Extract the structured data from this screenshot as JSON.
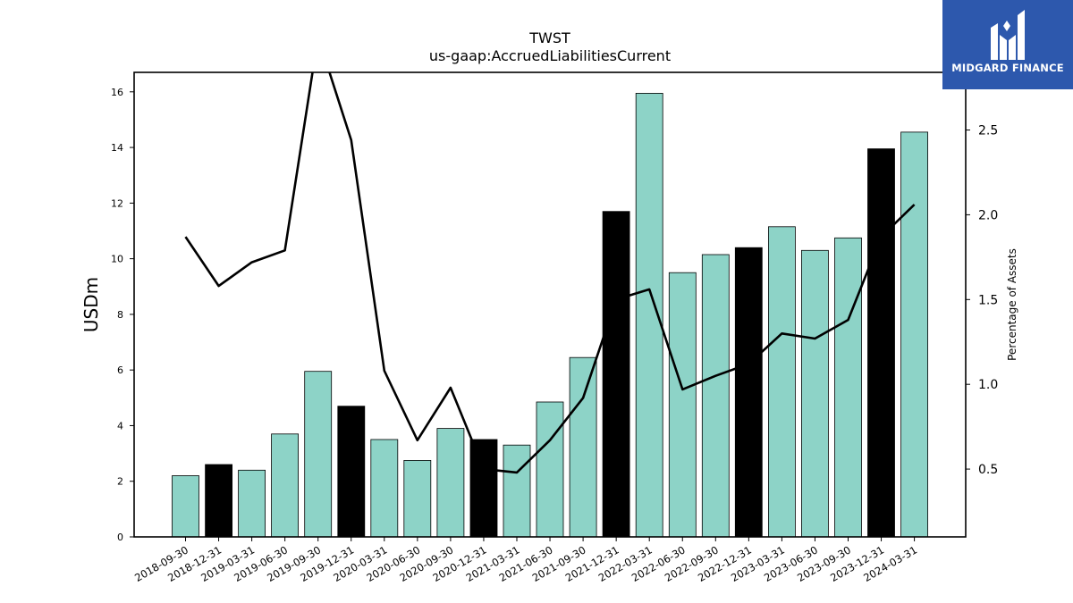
{
  "brand": {
    "name": "MIDGARD FINANCE",
    "color": "#2d58ad"
  },
  "chart_data": {
    "type": "bar",
    "title": "TWST",
    "subtitle": "us-gaap:AccruedLiabilitiesCurrent",
    "ylabel": "USDm",
    "y2label": "Percentage of Assets",
    "ylim": [
      0,
      16.7
    ],
    "y2lim": [
      0.1,
      2.84
    ],
    "yticks": [
      0,
      2,
      4,
      6,
      8,
      10,
      12,
      14,
      16
    ],
    "y2ticks": [
      0.5,
      1.0,
      1.5,
      2.0,
      2.5
    ],
    "grid": false,
    "categories": [
      "2018-09-30",
      "2018-12-31",
      "2019-03-31",
      "2019-06-30",
      "2019-09-30",
      "2019-12-31",
      "2020-03-31",
      "2020-06-30",
      "2020-09-30",
      "2020-12-31",
      "2021-03-31",
      "2021-06-30",
      "2021-09-30",
      "2021-12-31",
      "2022-03-31",
      "2022-06-30",
      "2022-09-30",
      "2022-12-31",
      "2023-03-31",
      "2023-06-30",
      "2023-09-30",
      "2023-12-31",
      "2024-03-31"
    ],
    "series": [
      {
        "kind": "bar",
        "axis": "left",
        "values": [
          2.2,
          2.6,
          2.4,
          3.7,
          5.95,
          4.7,
          3.5,
          2.75,
          3.9,
          3.5,
          3.3,
          4.85,
          6.45,
          11.7,
          15.95,
          9.5,
          10.15,
          10.4,
          11.15,
          10.3,
          10.75,
          13.95,
          14.55
        ],
        "highlight": [
          false,
          true,
          false,
          false,
          false,
          true,
          false,
          false,
          false,
          true,
          false,
          false,
          false,
          true,
          false,
          false,
          false,
          true,
          false,
          false,
          false,
          true,
          false
        ],
        "color": "#8dd3c7",
        "highlight_color": "#000000"
      },
      {
        "kind": "line",
        "axis": "right",
        "values": [
          1.87,
          1.58,
          1.72,
          1.79,
          3.05,
          2.44,
          1.08,
          0.67,
          0.98,
          0.5,
          0.48,
          0.67,
          0.92,
          1.5,
          1.56,
          0.97,
          1.05,
          1.12,
          1.3,
          1.27,
          1.38,
          1.87,
          2.06
        ],
        "color": "#000000"
      }
    ]
  }
}
